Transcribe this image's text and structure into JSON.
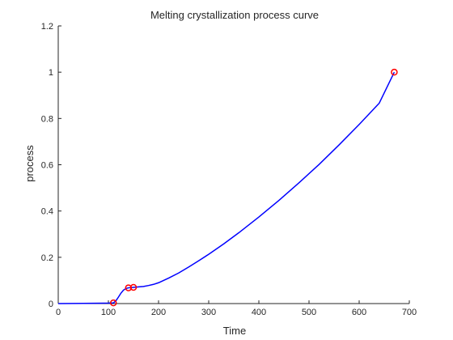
{
  "chart_data": {
    "type": "line",
    "title": "Melting crystallization process curve",
    "xlabel": "Time",
    "ylabel": "process",
    "xlim": [
      0,
      700
    ],
    "ylim": [
      0,
      1.2
    ],
    "xticks": [
      0,
      100,
      200,
      300,
      400,
      500,
      600,
      700
    ],
    "yticks": [
      0,
      0.2,
      0.4,
      0.6,
      0.8,
      1,
      1.2
    ],
    "xtick_labels": [
      "0",
      "100",
      "200",
      "300",
      "400",
      "500",
      "600",
      "700"
    ],
    "ytick_labels": [
      "0",
      "0.2",
      "0.4",
      "0.6",
      "0.8",
      "1",
      "1.2"
    ],
    "grid": false,
    "series": [
      {
        "color": "#0000ff",
        "style": "line",
        "x": [
          0,
          50,
          100,
          110,
          115,
          120,
          125,
          130,
          135,
          140,
          145,
          150,
          160,
          170,
          180,
          190,
          200,
          210,
          220,
          240,
          260,
          280,
          300,
          330,
          360,
          400,
          440,
          480,
          520,
          560,
          600,
          640,
          670
        ],
        "y": [
          0.0,
          0.001,
          0.002,
          0.003,
          0.012,
          0.028,
          0.045,
          0.058,
          0.065,
          0.068,
          0.069,
          0.07,
          0.072,
          0.074,
          0.078,
          0.083,
          0.09,
          0.1,
          0.11,
          0.132,
          0.158,
          0.185,
          0.213,
          0.258,
          0.306,
          0.374,
          0.446,
          0.522,
          0.601,
          0.686,
          0.774,
          0.866,
          1.0
        ]
      },
      {
        "color": "#ff0000",
        "style": "markers",
        "marker": "circle",
        "x": [
          110,
          140,
          150,
          670
        ],
        "y": [
          0.003,
          0.068,
          0.07,
          1.0
        ]
      }
    ]
  }
}
